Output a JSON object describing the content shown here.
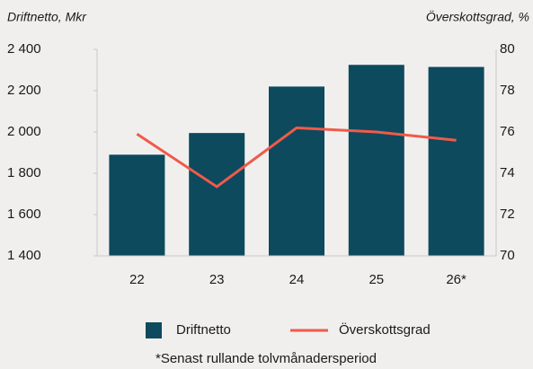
{
  "chart_data": {
    "type": "bar",
    "y_label": "Driftnetto, Mkr",
    "y2_label": "Överskottsgrad, %",
    "categories": [
      "22",
      "23",
      "24",
      "25",
      "26*"
    ],
    "series": [
      {
        "name": "Driftnetto",
        "type": "bar",
        "color": "#0d4a5e",
        "axis": "y",
        "values": [
          1890,
          1995,
          2220,
          2325,
          2315
        ]
      },
      {
        "name": "Överskottsgrad",
        "type": "line",
        "color": "#f05a4a",
        "axis": "y2",
        "values": [
          75.9,
          73.35,
          76.2,
          76.0,
          75.6
        ]
      }
    ],
    "ylim": [
      1400,
      2400
    ],
    "yticks": [
      {
        "value": 1400,
        "label": "1 400"
      },
      {
        "value": 1600,
        "label": "1 600"
      },
      {
        "value": 1800,
        "label": "1 800"
      },
      {
        "value": 2000,
        "label": "2 000"
      },
      {
        "value": 2200,
        "label": "2 200"
      },
      {
        "value": 2400,
        "label": "2 400"
      }
    ],
    "y2lim": [
      70,
      80
    ],
    "y2ticks": [
      70,
      72,
      74,
      76,
      78,
      80
    ],
    "footnote": "*Senast rullande tolvmånadersperiod",
    "grid": false
  }
}
